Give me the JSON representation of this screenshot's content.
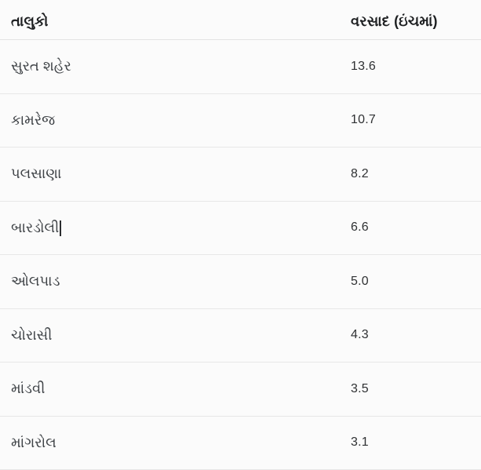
{
  "page": {
    "background_color": "#fbfbfb",
    "divider_color": "#e7e7e7"
  },
  "table": {
    "header": {
      "taluko_label": "તાલુકો",
      "rainfall_label": "વરસાદ (ઇંચમાં)"
    },
    "rows": [
      {
        "taluko": "સુરત શહેર",
        "rainfall": "13.6"
      },
      {
        "taluko": "કામરેજ",
        "rainfall": "10.7"
      },
      {
        "taluko": "પલસાણા",
        "rainfall": "8.2"
      },
      {
        "taluko": "બારડોલી",
        "rainfall": "6.6",
        "has_text_cursor": true
      },
      {
        "taluko": "ઓલપાડ",
        "rainfall": "5.0"
      },
      {
        "taluko": "ચોરાસી",
        "rainfall": "4.3"
      },
      {
        "taluko": "માંડવી",
        "rainfall": "3.5"
      },
      {
        "taluko": "માંગરોલ",
        "rainfall": "3.1"
      }
    ]
  },
  "chart_data": {
    "type": "table",
    "title": "",
    "columns": [
      "તાલુકો",
      "વરસાદ (ઇંચમાં)"
    ],
    "categories": [
      "સુરત શહેર",
      "કામરેજ",
      "પલસાણા",
      "બારડોલી",
      "ઓલપાડ",
      "ચોરાસી",
      "માંડવી",
      "માંગરોલ"
    ],
    "values": [
      13.6,
      10.7,
      8.2,
      6.6,
      5.0,
      4.3,
      3.5,
      3.1
    ],
    "value_unit": "inches",
    "notes": "Rainfall by taluka; a text caret is rendered after the 4th row label (બારડોલી)."
  }
}
